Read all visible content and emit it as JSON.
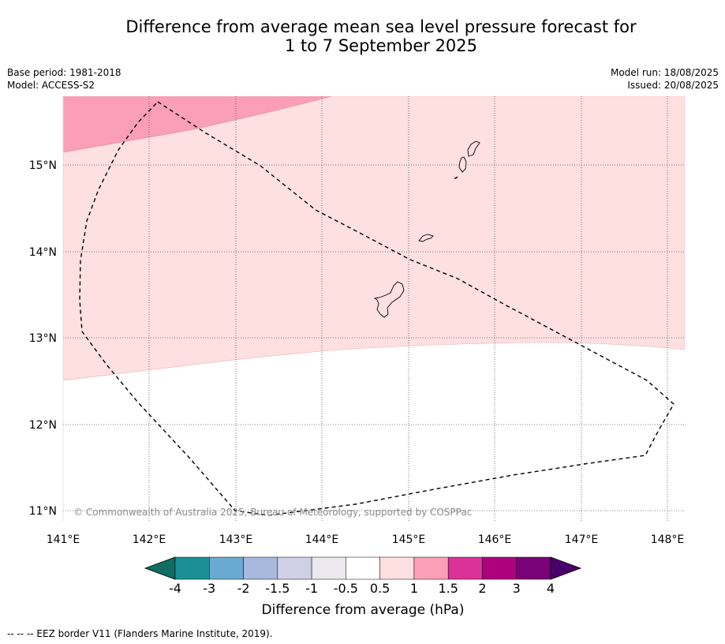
{
  "title_line1": "Difference from average mean sea level pressure forecast for",
  "title_line2": "1 to 7 September 2025",
  "meta": {
    "base_period": "Base period: 1981-2018",
    "model": "Model: ACCESS-S2",
    "model_run": "Model run: 18/08/2025",
    "issued": "Issued: 20/08/2025"
  },
  "map": {
    "lon_labels": [
      "141°E",
      "142°E",
      "143°E",
      "144°E",
      "145°E",
      "146°E",
      "147°E",
      "148°E"
    ],
    "lat_labels": [
      "15°N",
      "14°N",
      "13°N",
      "12°N",
      "11°N"
    ],
    "credit": "© Commonwealth of Australia 2025, Bureau of Meteorology, supported by COSPPac"
  },
  "colorbar": {
    "colors": [
      "#0f6d63",
      "#1a9096",
      "#6aa9d2",
      "#a8b8dd",
      "#cfcfe6",
      "#ebe8ee",
      "#ffffff",
      "#fde0df",
      "#fa9fb5",
      "#dc3199",
      "#ad017e",
      "#7a0177",
      "#49006a"
    ],
    "tick_labels": [
      "-4",
      "-3",
      "-2",
      "-1.5",
      "-1",
      "-0.5",
      "0.5",
      "1",
      "1.5",
      "2",
      "3",
      "4"
    ],
    "title": "Difference from average (hPa)"
  },
  "footnote": "--  --  -- EEZ border V11 (Flanders Marine Institute, 2019)."
}
